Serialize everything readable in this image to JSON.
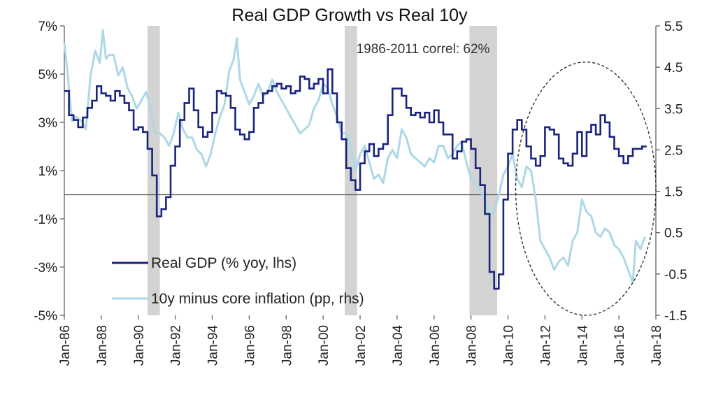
{
  "chart_data": {
    "type": "line",
    "title": "Real GDP Growth vs Real 10y",
    "annotation": "1986-2011 correl: 62%",
    "x_range": [
      "1986-01",
      "2018-01"
    ],
    "x_ticks": [
      "Jan-86",
      "Jan-88",
      "Jan-90",
      "Jan-92",
      "Jan-94",
      "Jan-96",
      "Jan-98",
      "Jan-00",
      "Jan-02",
      "Jan-04",
      "Jan-06",
      "Jan-08",
      "Jan-10",
      "Jan-12",
      "Jan-14",
      "Jan-16",
      "Jan-18"
    ],
    "y_left": {
      "range": [
        -5,
        7
      ],
      "ticks": [
        "7%",
        "5%",
        "3%",
        "1%",
        "-1%",
        "-3%",
        "-5%"
      ]
    },
    "y_right": {
      "range": [
        -1.5,
        5.5
      ],
      "ticks": [
        "5.5",
        "4.5",
        "3.5",
        "2.5",
        "1.5",
        "0.5",
        "-0.5",
        "-1.5"
      ]
    },
    "zero_line_left": 0,
    "recessions": [
      [
        "1990-07",
        "1991-03"
      ],
      [
        "2001-03",
        "2001-11"
      ],
      [
        "2007-12",
        "2009-06"
      ]
    ],
    "highlight_ellipse": {
      "x_range": [
        "2010-06",
        "2018-01"
      ],
      "y_left_range": [
        -5,
        5.5
      ],
      "style": "dashed"
    },
    "legend": {
      "placement": "lower-left"
    },
    "colors": {
      "gdp": "#1a237e",
      "real10y": "#add8e6",
      "recession": "#d3d3d3",
      "axis": "#555555"
    },
    "series": [
      {
        "name": "Real GDP (% yoy, lhs)",
        "axis": "left",
        "style": "step",
        "points": [
          [
            "1986-01",
            4.3
          ],
          [
            "1986-04",
            3.3
          ],
          [
            "1986-07",
            3.1
          ],
          [
            "1986-10",
            2.8
          ],
          [
            "1987-01",
            3.2
          ],
          [
            "1987-04",
            3.6
          ],
          [
            "1987-07",
            3.9
          ],
          [
            "1987-10",
            4.5
          ],
          [
            "1988-01",
            4.2
          ],
          [
            "1988-04",
            4.1
          ],
          [
            "1988-07",
            3.9
          ],
          [
            "1988-10",
            4.3
          ],
          [
            "1989-01",
            4.1
          ],
          [
            "1989-04",
            3.8
          ],
          [
            "1989-07",
            3.5
          ],
          [
            "1989-10",
            2.7
          ],
          [
            "1990-01",
            2.8
          ],
          [
            "1990-04",
            2.6
          ],
          [
            "1990-07",
            1.9
          ],
          [
            "1990-10",
            0.8
          ],
          [
            "1991-01",
            -0.9
          ],
          [
            "1991-04",
            -0.6
          ],
          [
            "1991-07",
            -0.1
          ],
          [
            "1991-10",
            1.2
          ],
          [
            "1992-01",
            2.0
          ],
          [
            "1992-04",
            3.1
          ],
          [
            "1992-07",
            3.8
          ],
          [
            "1992-10",
            4.4
          ],
          [
            "1993-01",
            3.5
          ],
          [
            "1993-04",
            2.8
          ],
          [
            "1993-07",
            2.4
          ],
          [
            "1993-10",
            2.6
          ],
          [
            "1994-01",
            3.4
          ],
          [
            "1994-04",
            4.3
          ],
          [
            "1994-07",
            4.2
          ],
          [
            "1994-10",
            4.1
          ],
          [
            "1995-01",
            3.6
          ],
          [
            "1995-04",
            2.7
          ],
          [
            "1995-07",
            2.5
          ],
          [
            "1995-10",
            2.3
          ],
          [
            "1996-01",
            2.6
          ],
          [
            "1996-04",
            3.6
          ],
          [
            "1996-07",
            3.8
          ],
          [
            "1996-10",
            4.2
          ],
          [
            "1997-01",
            4.3
          ],
          [
            "1997-04",
            4.5
          ],
          [
            "1997-07",
            4.6
          ],
          [
            "1997-10",
            4.4
          ],
          [
            "1998-01",
            4.5
          ],
          [
            "1998-04",
            4.2
          ],
          [
            "1998-07",
            4.3
          ],
          [
            "1998-10",
            4.9
          ],
          [
            "1999-01",
            4.8
          ],
          [
            "1999-04",
            4.4
          ],
          [
            "1999-07",
            4.6
          ],
          [
            "1999-10",
            4.8
          ],
          [
            "2000-01",
            4.2
          ],
          [
            "2000-04",
            5.2
          ],
          [
            "2000-07",
            4.2
          ],
          [
            "2000-10",
            3.0
          ],
          [
            "2001-01",
            2.3
          ],
          [
            "2001-04",
            1.1
          ],
          [
            "2001-07",
            0.6
          ],
          [
            "2001-10",
            0.2
          ],
          [
            "2002-01",
            1.3
          ],
          [
            "2002-04",
            1.8
          ],
          [
            "2002-07",
            2.1
          ],
          [
            "2002-10",
            1.6
          ],
          [
            "2003-01",
            1.9
          ],
          [
            "2003-04",
            2.1
          ],
          [
            "2003-07",
            3.3
          ],
          [
            "2003-10",
            4.4
          ],
          [
            "2004-01",
            4.4
          ],
          [
            "2004-04",
            4.1
          ],
          [
            "2004-07",
            3.6
          ],
          [
            "2004-10",
            3.3
          ],
          [
            "2005-01",
            3.4
          ],
          [
            "2005-04",
            3.2
          ],
          [
            "2005-07",
            3.4
          ],
          [
            "2005-10",
            3.0
          ],
          [
            "2006-01",
            3.5
          ],
          [
            "2006-04",
            3.0
          ],
          [
            "2006-07",
            2.5
          ],
          [
            "2006-10",
            2.5
          ],
          [
            "2007-01",
            1.5
          ],
          [
            "2007-04",
            1.8
          ],
          [
            "2007-07",
            2.2
          ],
          [
            "2007-10",
            2.3
          ],
          [
            "2008-01",
            1.9
          ],
          [
            "2008-04",
            1.1
          ],
          [
            "2008-07",
            0.4
          ],
          [
            "2008-10",
            -0.8
          ],
          [
            "2009-01",
            -3.2
          ],
          [
            "2009-04",
            -3.9
          ],
          [
            "2009-07",
            -3.3
          ],
          [
            "2009-10",
            -0.2
          ],
          [
            "2010-01",
            1.7
          ],
          [
            "2010-04",
            2.7
          ],
          [
            "2010-07",
            3.1
          ],
          [
            "2010-10",
            2.7
          ],
          [
            "2011-01",
            2.0
          ],
          [
            "2011-04",
            1.5
          ],
          [
            "2011-07",
            1.2
          ],
          [
            "2011-10",
            1.6
          ],
          [
            "2012-01",
            2.8
          ],
          [
            "2012-04",
            2.7
          ],
          [
            "2012-07",
            2.5
          ],
          [
            "2012-10",
            1.5
          ],
          [
            "2013-01",
            1.3
          ],
          [
            "2013-04",
            1.2
          ],
          [
            "2013-07",
            1.7
          ],
          [
            "2013-10",
            2.6
          ],
          [
            "2014-01",
            1.6
          ],
          [
            "2014-04",
            2.6
          ],
          [
            "2014-07",
            2.9
          ],
          [
            "2014-10",
            2.5
          ],
          [
            "2015-01",
            3.3
          ],
          [
            "2015-04",
            3.0
          ],
          [
            "2015-07",
            2.4
          ],
          [
            "2015-10",
            1.9
          ],
          [
            "2016-01",
            1.6
          ],
          [
            "2016-04",
            1.3
          ],
          [
            "2016-07",
            1.6
          ],
          [
            "2016-10",
            1.9
          ],
          [
            "2017-01",
            1.9
          ],
          [
            "2017-04",
            2.0
          ],
          [
            "2017-07",
            2.0
          ]
        ]
      },
      {
        "name": "10y minus core inflation (pp, rhs)",
        "axis": "right",
        "style": "line",
        "points": [
          [
            "1986-01",
            5.1
          ],
          [
            "1986-03",
            4.4
          ],
          [
            "1986-06",
            3.2
          ],
          [
            "1986-09",
            3.3
          ],
          [
            "1986-12",
            3.2
          ],
          [
            "1987-03",
            3.0
          ],
          [
            "1987-06",
            4.3
          ],
          [
            "1987-09",
            4.9
          ],
          [
            "1987-12",
            4.6
          ],
          [
            "1988-02",
            5.4
          ],
          [
            "1988-04",
            4.7
          ],
          [
            "1988-06",
            4.8
          ],
          [
            "1988-09",
            4.8
          ],
          [
            "1988-12",
            4.3
          ],
          [
            "1989-03",
            4.5
          ],
          [
            "1989-06",
            4.0
          ],
          [
            "1989-09",
            3.8
          ],
          [
            "1989-12",
            3.5
          ],
          [
            "1990-03",
            3.7
          ],
          [
            "1990-06",
            3.9
          ],
          [
            "1990-09",
            3.5
          ],
          [
            "1990-12",
            2.9
          ],
          [
            "1991-03",
            2.9
          ],
          [
            "1991-06",
            2.8
          ],
          [
            "1991-09",
            2.6
          ],
          [
            "1991-12",
            2.9
          ],
          [
            "1992-03",
            3.4
          ],
          [
            "1992-06",
            3.0
          ],
          [
            "1992-09",
            2.8
          ],
          [
            "1992-12",
            2.8
          ],
          [
            "1993-03",
            2.5
          ],
          [
            "1993-06",
            2.4
          ],
          [
            "1993-09",
            2.1
          ],
          [
            "1993-12",
            2.4
          ],
          [
            "1994-03",
            2.9
          ],
          [
            "1994-06",
            3.3
          ],
          [
            "1994-09",
            3.6
          ],
          [
            "1994-12",
            4.4
          ],
          [
            "1995-03",
            4.7
          ],
          [
            "1995-05",
            5.2
          ],
          [
            "1995-07",
            4.2
          ],
          [
            "1995-10",
            3.9
          ],
          [
            "1996-01",
            3.6
          ],
          [
            "1996-04",
            3.8
          ],
          [
            "1996-07",
            4.1
          ],
          [
            "1996-10",
            3.8
          ],
          [
            "1997-01",
            3.9
          ],
          [
            "1997-04",
            4.2
          ],
          [
            "1997-07",
            3.9
          ],
          [
            "1997-10",
            3.7
          ],
          [
            "1998-01",
            3.5
          ],
          [
            "1998-04",
            3.3
          ],
          [
            "1998-07",
            3.1
          ],
          [
            "1998-10",
            2.9
          ],
          [
            "1999-01",
            3.0
          ],
          [
            "1999-04",
            3.1
          ],
          [
            "1999-07",
            3.5
          ],
          [
            "1999-10",
            3.7
          ],
          [
            "2000-01",
            4.1
          ],
          [
            "2000-04",
            4.0
          ],
          [
            "2000-07",
            3.6
          ],
          [
            "2000-10",
            3.3
          ],
          [
            "2001-01",
            2.9
          ],
          [
            "2001-04",
            2.9
          ],
          [
            "2001-07",
            2.6
          ],
          [
            "2001-10",
            2.0
          ],
          [
            "2002-01",
            2.4
          ],
          [
            "2002-04",
            2.6
          ],
          [
            "2002-07",
            2.2
          ],
          [
            "2002-10",
            1.8
          ],
          [
            "2003-01",
            1.9
          ],
          [
            "2003-04",
            1.7
          ],
          [
            "2003-07",
            2.3
          ],
          [
            "2003-10",
            2.5
          ],
          [
            "2004-01",
            2.3
          ],
          [
            "2004-04",
            3.0
          ],
          [
            "2004-07",
            2.8
          ],
          [
            "2004-10",
            2.4
          ],
          [
            "2005-01",
            2.3
          ],
          [
            "2005-04",
            2.2
          ],
          [
            "2005-07",
            2.1
          ],
          [
            "2005-10",
            2.3
          ],
          [
            "2006-01",
            2.2
          ],
          [
            "2006-04",
            2.6
          ],
          [
            "2006-07",
            2.6
          ],
          [
            "2006-10",
            2.3
          ],
          [
            "2007-01",
            2.4
          ],
          [
            "2007-04",
            2.6
          ],
          [
            "2007-07",
            2.7
          ],
          [
            "2007-10",
            2.2
          ],
          [
            "2008-01",
            1.8
          ],
          [
            "2008-04",
            1.7
          ],
          [
            "2008-07",
            1.5
          ],
          [
            "2008-10",
            1.3
          ],
          [
            "2009-01",
            0.9
          ],
          [
            "2009-04",
            1.0
          ],
          [
            "2009-07",
            1.4
          ],
          [
            "2009-10",
            1.9
          ],
          [
            "2010-01",
            2.1
          ],
          [
            "2010-04",
            2.4
          ],
          [
            "2010-07",
            1.8
          ],
          [
            "2010-10",
            1.6
          ],
          [
            "2011-01",
            2.1
          ],
          [
            "2011-04",
            2.0
          ],
          [
            "2011-07",
            1.3
          ],
          [
            "2011-10",
            0.3
          ],
          [
            "2012-01",
            0.1
          ],
          [
            "2012-04",
            -0.1
          ],
          [
            "2012-07",
            -0.4
          ],
          [
            "2012-10",
            -0.2
          ],
          [
            "2013-01",
            -0.1
          ],
          [
            "2013-04",
            -0.3
          ],
          [
            "2013-07",
            0.3
          ],
          [
            "2013-10",
            0.5
          ],
          [
            "2014-01",
            1.3
          ],
          [
            "2014-04",
            1.0
          ],
          [
            "2014-07",
            0.9
          ],
          [
            "2014-10",
            0.5
          ],
          [
            "2015-01",
            0.4
          ],
          [
            "2015-04",
            0.6
          ],
          [
            "2015-07",
            0.5
          ],
          [
            "2015-10",
            0.2
          ],
          [
            "2016-01",
            0.1
          ],
          [
            "2016-04",
            -0.1
          ],
          [
            "2016-07",
            -0.4
          ],
          [
            "2016-10",
            -0.7
          ],
          [
            "2016-12",
            0.3
          ],
          [
            "2017-03",
            0.1
          ],
          [
            "2017-06",
            0.4
          ]
        ]
      }
    ]
  }
}
